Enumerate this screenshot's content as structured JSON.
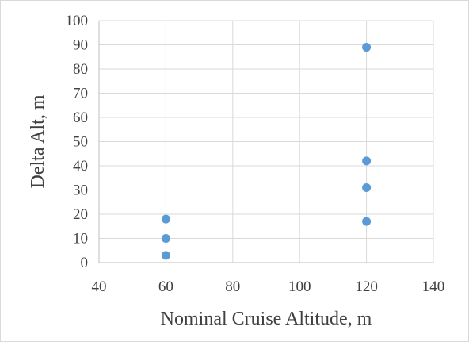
{
  "chart_data": {
    "type": "scatter",
    "title": "",
    "xlabel": "Nominal Cruise Altitude, m",
    "ylabel": "Delta Alt, m",
    "xlim": [
      40,
      140
    ],
    "ylim": [
      0,
      100
    ],
    "x_ticks": [
      40,
      60,
      80,
      100,
      120,
      140
    ],
    "y_ticks": [
      0,
      10,
      20,
      30,
      40,
      50,
      60,
      70,
      80,
      90,
      100
    ],
    "grid": true,
    "legend": "none",
    "series": [
      {
        "color": "#5b9bd5",
        "points": [
          {
            "x": 60,
            "y": 3
          },
          {
            "x": 60,
            "y": 10
          },
          {
            "x": 60,
            "y": 18
          },
          {
            "x": 120,
            "y": 17
          },
          {
            "x": 120,
            "y": 31
          },
          {
            "x": 120,
            "y": 42
          },
          {
            "x": 120,
            "y": 89
          }
        ]
      }
    ]
  }
}
